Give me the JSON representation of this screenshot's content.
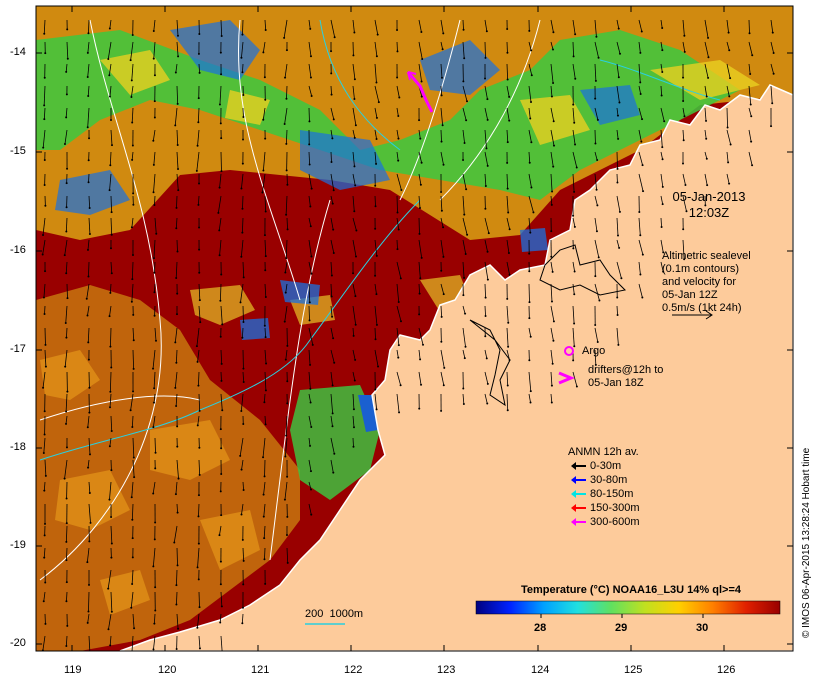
{
  "map": {
    "type": "sea-surface-temperature-map",
    "lon_range": [
      118.6,
      126.7
    ],
    "lat_range": [
      -20.1,
      -13.6
    ],
    "x_ticks": [
      "119",
      "120",
      "121",
      "122",
      "123",
      "124",
      "125",
      "126"
    ],
    "y_ticks": [
      "-14",
      "-15",
      "-16",
      "-17",
      "-18",
      "-19",
      "-20"
    ],
    "colors": {
      "land": "#fdcb9b",
      "warm_sst": "#990000",
      "coast": "#ffffff",
      "contour": "#ffffff"
    }
  },
  "annotations": {
    "date_line1": "05-Jan-2013",
    "date_line2": "12:03Z",
    "altimetry_lines": [
      "Altimetric sealevel",
      "(0.1m contours)",
      "and velocity for",
      "05-Jan 12Z",
      "0.5m/s (1kt 24h)"
    ],
    "argo_label": "Argo",
    "drifters_line1": "drifters@12h to",
    "drifters_line2": "05-Jan 18Z"
  },
  "legend": {
    "title": "ANMN 12h av.",
    "items": [
      {
        "label": "0-30m",
        "color": "#000000"
      },
      {
        "label": "30-80m",
        "color": "#0000ff"
      },
      {
        "label": "80-150m",
        "color": "#00e5e5"
      },
      {
        "label": "150-300m",
        "color": "#ff0000"
      },
      {
        "label": "300-600m",
        "color": "#ff00ff"
      }
    ]
  },
  "colorbar": {
    "title": "Temperature (°C) NOAA16_L3U 14% ql>=4",
    "ticks": [
      "28",
      "29",
      "30"
    ],
    "colors": [
      "#00007f",
      "#0022ff",
      "#00a0ff",
      "#20e0e0",
      "#60e060",
      "#c0e020",
      "#ffd000",
      "#ff8000",
      "#e02000",
      "#990000"
    ]
  },
  "scale": {
    "label": "200  1000m"
  },
  "credit": "© IMOS 06-Apr-2015 13:28:24 Hobart time"
}
